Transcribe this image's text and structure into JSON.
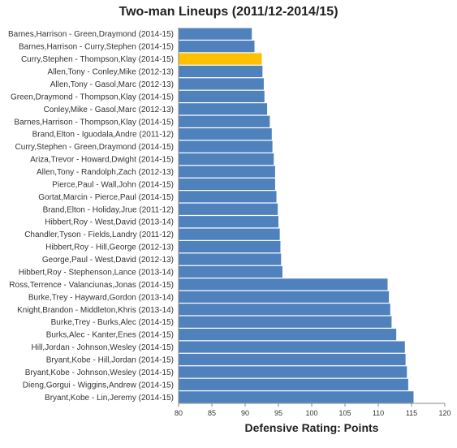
{
  "chart_data": {
    "type": "bar",
    "orientation": "horizontal",
    "title": "Two-man Lineups (2011/12-2014/15)",
    "xlabel": "Defensive Rating: Points",
    "ylabel": "",
    "xlim": [
      80,
      120
    ],
    "xticks": [
      80,
      85,
      90,
      95,
      100,
      105,
      110,
      115,
      120
    ],
    "grid": false,
    "legend": "none",
    "colors": {
      "bar": "#4f81bd",
      "highlight": "#ffc000"
    },
    "highlight_index": 2,
    "categories": [
      "Barnes,Harrison - Green,Draymond (2014-15)",
      "Barnes,Harrison - Curry,Stephen (2014-15)",
      "Curry,Stephen - Thompson,Klay (2014-15)",
      "Allen,Tony - Conley,Mike (2012-13)",
      "Allen,Tony - Gasol,Marc (2012-13)",
      "Green,Draymond - Thompson,Klay (2014-15)",
      "Conley,Mike - Gasol,Marc (2012-13)",
      "Barnes,Harrison - Thompson,Klay (2014-15)",
      "Brand,Elton - Iguodala,Andre (2011-12)",
      "Curry,Stephen - Green,Draymond (2014-15)",
      "Ariza,Trevor - Howard,Dwight (2014-15)",
      "Allen,Tony - Randolph,Zach (2012-13)",
      "Pierce,Paul - Wall,John (2014-15)",
      "Gortat,Marcin - Pierce,Paul (2014-15)",
      "Brand,Elton - Holiday,Jrue (2011-12)",
      "Hibbert,Roy - West,David (2013-14)",
      "Chandler,Tyson - Fields,Landry (2011-12)",
      "Hibbert,Roy - Hill,George (2012-13)",
      "George,Paul - West,David (2012-13)",
      "Hibbert,Roy - Stephenson,Lance (2013-14)",
      "Ross,Terrence - Valanciunas,Jonas (2014-15)",
      "Burke,Trey - Hayward,Gordon (2013-14)",
      "Knight,Brandon - Middleton,Khris (2013-14)",
      "Burke,Trey - Burks,Alec (2014-15)",
      "Burks,Alec - Kanter,Enes (2014-15)",
      "Hill,Jordan - Johnson,Wesley (2014-15)",
      "Bryant,Kobe - Hill,Jordan (2014-15)",
      "Bryant,Kobe - Johnson,Wesley (2014-15)",
      "Dieng,Gorgui - Wiggins,Andrew (2014-15)",
      "Bryant,Kobe - Lin,Jeremy (2014-15)"
    ],
    "values": [
      91.0,
      91.4,
      92.5,
      92.6,
      92.8,
      92.9,
      93.3,
      93.7,
      94.0,
      94.1,
      94.3,
      94.5,
      94.5,
      94.7,
      94.9,
      95.0,
      95.2,
      95.3,
      95.4,
      95.6,
      111.4,
      111.6,
      111.8,
      112.0,
      112.7,
      114.0,
      114.1,
      114.3,
      114.5,
      115.3
    ]
  }
}
